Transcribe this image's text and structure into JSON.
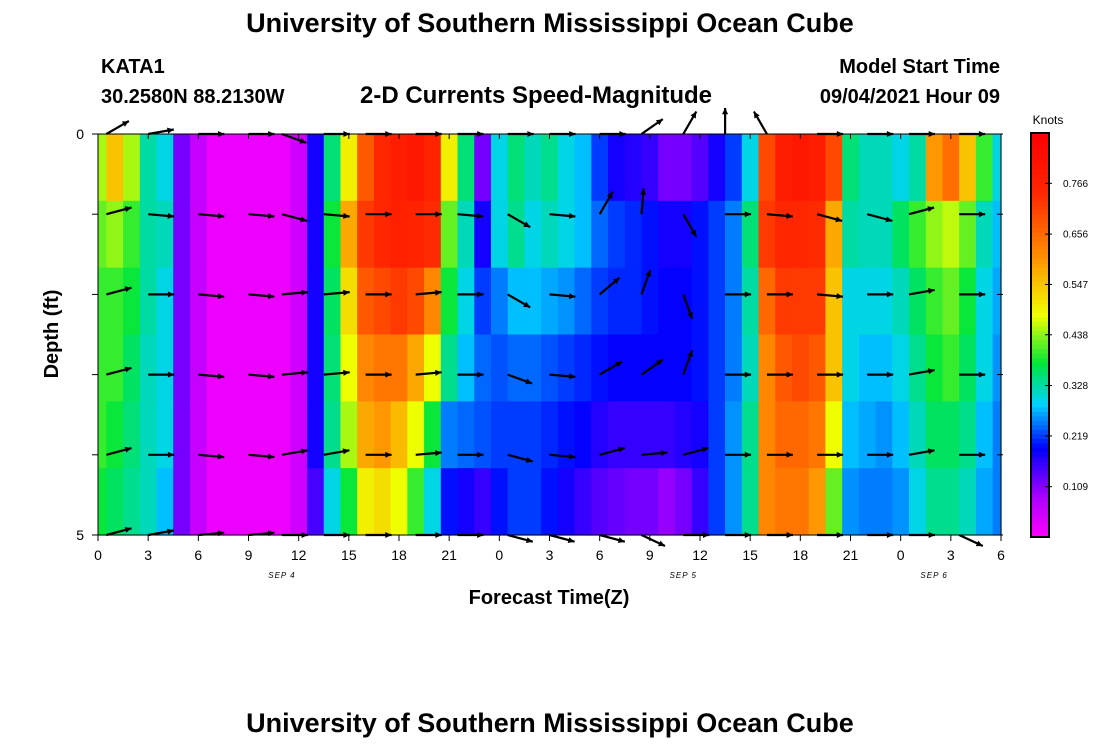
{
  "header": {
    "title": "University of Southern Mississippi Ocean Cube",
    "station": "KATA1",
    "coordinates": "30.2580N  88.2130W",
    "subtitle": "2-D Currents Speed-Magnitude",
    "model_start_label": "Model Start Time",
    "model_start_value": "09/04/2021 Hour 09"
  },
  "footer": {
    "title": "University of Southern Mississippi Ocean Cube"
  },
  "chart_data": {
    "type": "heatmap",
    "xlabel": "Forecast Time(Z)",
    "ylabel": "Depth (ft)",
    "x_tick_labels": [
      "0",
      "3",
      "6",
      "9",
      "12",
      "15",
      "18",
      "21",
      "0",
      "3",
      "6",
      "9",
      "12",
      "15",
      "18",
      "21",
      "0",
      "3",
      "6"
    ],
    "x_step_hours": 3,
    "date_labels": [
      {
        "text": "SEP 4",
        "hour": 11
      },
      {
        "text": "SEP 5",
        "hour": 35
      },
      {
        "text": "SEP 6",
        "hour": 50
      }
    ],
    "y_tick_labels": [
      "0",
      "5"
    ],
    "ylim": [
      0,
      5
    ],
    "depth_levels_ft": [
      0,
      1,
      2,
      3,
      4,
      5
    ],
    "colorbar": {
      "title": "Knots",
      "range": [
        0,
        0.875
      ],
      "tick_labels": [
        "0.109",
        "0.219",
        "0.328",
        "0.438",
        "0.547",
        "0.656",
        "0.766"
      ],
      "tick_values": [
        0.109,
        0.219,
        0.328,
        0.438,
        0.547,
        0.656,
        0.766
      ]
    },
    "hours": [
      0,
      1,
      2,
      3,
      4,
      5,
      6,
      7,
      8,
      9,
      10,
      11,
      12,
      13,
      14,
      15,
      16,
      17,
      18,
      19,
      20,
      21,
      22,
      23,
      24,
      25,
      26,
      27,
      28,
      29,
      30,
      31,
      32,
      33,
      34,
      35,
      36,
      37,
      38,
      39,
      40,
      41,
      42,
      43,
      44,
      45,
      46,
      47,
      48,
      49,
      50,
      51,
      52,
      53,
      54
    ],
    "speed_by_depth": [
      [
        0.45,
        0.55,
        0.45,
        0.33,
        0.3,
        0.12,
        0.06,
        0.02,
        0.02,
        0.02,
        0.02,
        0.02,
        0.05,
        0.18,
        0.35,
        0.5,
        0.68,
        0.75,
        0.78,
        0.8,
        0.76,
        0.5,
        0.35,
        0.12,
        0.3,
        0.35,
        0.32,
        0.34,
        0.3,
        0.28,
        0.22,
        0.18,
        0.17,
        0.16,
        0.12,
        0.12,
        0.14,
        0.18,
        0.22,
        0.3,
        0.7,
        0.78,
        0.8,
        0.78,
        0.7,
        0.35,
        0.32,
        0.32,
        0.3,
        0.33,
        0.6,
        0.65,
        0.55,
        0.4,
        0.3
      ],
      [
        0.42,
        0.44,
        0.4,
        0.33,
        0.32,
        0.12,
        0.06,
        0.02,
        0.02,
        0.02,
        0.02,
        0.02,
        0.05,
        0.18,
        0.38,
        0.58,
        0.72,
        0.75,
        0.77,
        0.76,
        0.74,
        0.42,
        0.32,
        0.18,
        0.3,
        0.34,
        0.3,
        0.32,
        0.3,
        0.28,
        0.24,
        0.22,
        0.21,
        0.2,
        0.18,
        0.18,
        0.2,
        0.22,
        0.25,
        0.35,
        0.72,
        0.75,
        0.75,
        0.74,
        0.58,
        0.33,
        0.32,
        0.32,
        0.36,
        0.4,
        0.44,
        0.46,
        0.42,
        0.32,
        0.28
      ],
      [
        0.4,
        0.4,
        0.38,
        0.33,
        0.3,
        0.12,
        0.06,
        0.02,
        0.02,
        0.02,
        0.02,
        0.02,
        0.05,
        0.18,
        0.36,
        0.52,
        0.68,
        0.7,
        0.72,
        0.7,
        0.62,
        0.38,
        0.3,
        0.22,
        0.25,
        0.28,
        0.28,
        0.27,
        0.26,
        0.24,
        0.22,
        0.21,
        0.21,
        0.2,
        0.19,
        0.19,
        0.2,
        0.22,
        0.25,
        0.33,
        0.66,
        0.72,
        0.72,
        0.72,
        0.55,
        0.3,
        0.3,
        0.3,
        0.32,
        0.36,
        0.4,
        0.42,
        0.38,
        0.3,
        0.27
      ],
      [
        0.4,
        0.4,
        0.36,
        0.32,
        0.3,
        0.12,
        0.06,
        0.02,
        0.02,
        0.02,
        0.02,
        0.02,
        0.05,
        0.18,
        0.35,
        0.48,
        0.62,
        0.64,
        0.64,
        0.58,
        0.48,
        0.34,
        0.28,
        0.24,
        0.23,
        0.24,
        0.24,
        0.23,
        0.22,
        0.21,
        0.2,
        0.19,
        0.19,
        0.19,
        0.19,
        0.19,
        0.2,
        0.22,
        0.25,
        0.32,
        0.62,
        0.68,
        0.7,
        0.68,
        0.55,
        0.3,
        0.28,
        0.28,
        0.3,
        0.34,
        0.38,
        0.4,
        0.36,
        0.3,
        0.26
      ],
      [
        0.4,
        0.38,
        0.35,
        0.32,
        0.3,
        0.12,
        0.06,
        0.02,
        0.02,
        0.02,
        0.02,
        0.02,
        0.05,
        0.18,
        0.34,
        0.45,
        0.58,
        0.6,
        0.56,
        0.48,
        0.38,
        0.25,
        0.24,
        0.23,
        0.22,
        0.22,
        0.22,
        0.21,
        0.2,
        0.19,
        0.17,
        0.16,
        0.16,
        0.16,
        0.16,
        0.17,
        0.18,
        0.22,
        0.26,
        0.34,
        0.62,
        0.66,
        0.66,
        0.64,
        0.48,
        0.28,
        0.27,
        0.26,
        0.28,
        0.32,
        0.36,
        0.36,
        0.34,
        0.28,
        0.25
      ],
      [
        0.38,
        0.36,
        0.34,
        0.32,
        0.28,
        0.12,
        0.06,
        0.02,
        0.02,
        0.02,
        0.02,
        0.02,
        0.05,
        0.15,
        0.3,
        0.38,
        0.5,
        0.52,
        0.48,
        0.4,
        0.3,
        0.2,
        0.18,
        0.16,
        0.2,
        0.22,
        0.22,
        0.2,
        0.18,
        0.16,
        0.14,
        0.13,
        0.12,
        0.12,
        0.1,
        0.12,
        0.16,
        0.22,
        0.26,
        0.34,
        0.62,
        0.64,
        0.64,
        0.6,
        0.42,
        0.26,
        0.25,
        0.25,
        0.26,
        0.3,
        0.34,
        0.34,
        0.32,
        0.27,
        0.25
      ]
    ],
    "arrow_hours": [
      0.5,
      3,
      6,
      9,
      11,
      13.5,
      16,
      19,
      21.5,
      24.5,
      27,
      30,
      32.5,
      35,
      37.5,
      40,
      43,
      46,
      48.5,
      51.5
    ],
    "arrow_dir_deg_by_depth": [
      [
        30,
        10,
        0,
        0,
        -20,
        0,
        0,
        0,
        0,
        0,
        0,
        0,
        35,
        60,
        90,
        120,
        0,
        0,
        0,
        0
      ],
      [
        15,
        -5,
        -5,
        -5,
        -15,
        -5,
        0,
        0,
        -5,
        -30,
        -5,
        60,
        85,
        -60,
        0,
        -5,
        -15,
        -15,
        15,
        0
      ],
      [
        15,
        0,
        -5,
        -5,
        5,
        5,
        0,
        5,
        0,
        -30,
        -5,
        40,
        70,
        -70,
        0,
        0,
        -5,
        0,
        10,
        0
      ],
      [
        15,
        0,
        -5,
        -5,
        5,
        5,
        0,
        5,
        0,
        -20,
        -5,
        30,
        35,
        70,
        0,
        0,
        0,
        0,
        10,
        0
      ],
      [
        15,
        0,
        -5,
        -5,
        10,
        10,
        0,
        5,
        0,
        -15,
        -5,
        15,
        5,
        15,
        0,
        0,
        0,
        0,
        10,
        0
      ],
      [
        15,
        10,
        5,
        5,
        0,
        0,
        0,
        0,
        0,
        -15,
        -15,
        -15,
        -25,
        0,
        0,
        0,
        0,
        0,
        0,
        -25
      ]
    ]
  }
}
